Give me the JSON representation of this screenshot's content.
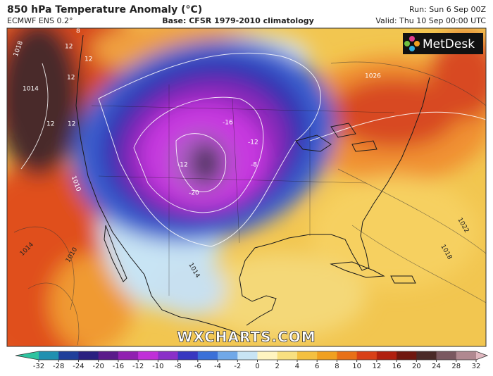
{
  "header": {
    "title": "850 hPa Temperature Anomaly (°C)",
    "model": "ECMWF ENS 0.2°",
    "base": "Base: CFSR 1979-2010 climatology",
    "run": "Run: Sun 6 Sep 00Z",
    "valid": "Valid: Thu 10 Sep 00:00 UTC"
  },
  "logo": "MetDesk",
  "watermark": "WXCHARTS.COM",
  "map": {
    "contour_labels": [
      "12",
      "12",
      "12",
      "12",
      "12",
      "8",
      "1018",
      "1014",
      "1010",
      "1014",
      "1010",
      "-16",
      "-12",
      "-12",
      "-8",
      "-20",
      "1026",
      "1022",
      "1018",
      "1014"
    ]
  },
  "colorbar": {
    "ticks": [
      -32,
      -28,
      -24,
      -20,
      -16,
      -12,
      -10,
      -8,
      -6,
      -4,
      -2,
      0,
      2,
      4,
      6,
      8,
      10,
      12,
      16,
      20,
      24,
      28,
      32
    ],
    "colors": [
      "#2ec4a0",
      "#2090b0",
      "#1f3f9a",
      "#2a2080",
      "#5a1a8a",
      "#9020b0",
      "#c030d8",
      "#8a30c8",
      "#3838c0",
      "#3a70d8",
      "#70a8e8",
      "#c8e4f4",
      "#fff4c0",
      "#f8e080",
      "#f4c040",
      "#f0a020",
      "#e87018",
      "#d84018",
      "#b02010",
      "#701810",
      "#4a2a28",
      "#7a5860",
      "#b08890",
      "#e0b8c0"
    ]
  }
}
